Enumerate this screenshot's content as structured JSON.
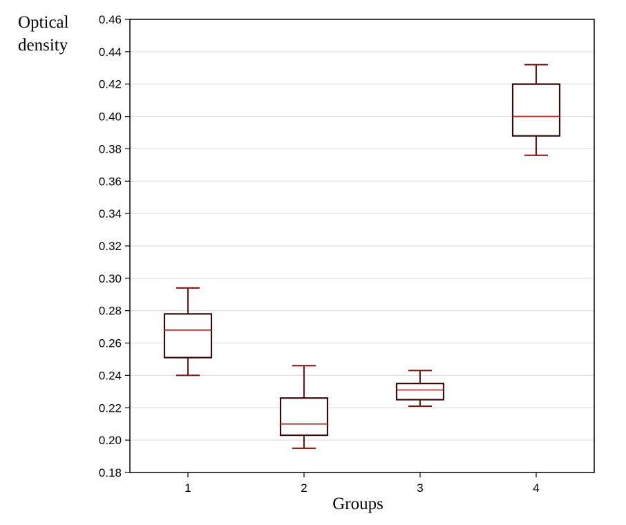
{
  "chart_data": {
    "type": "box",
    "ylabel_lines": [
      "Optical",
      "density"
    ],
    "xlabel": "Groups",
    "ylim": [
      0.18,
      0.46
    ],
    "yticks": [
      "0.18",
      "0.20",
      "0.22",
      "0.24",
      "0.26",
      "0.28",
      "0.30",
      "0.32",
      "0.34",
      "0.36",
      "0.38",
      "0.40",
      "0.42",
      "0.44",
      "0.46"
    ],
    "grid": true,
    "categories": [
      "1",
      "2",
      "3",
      "4"
    ],
    "boxes": [
      {
        "category": "1",
        "whisker_low": 0.24,
        "q1": 0.251,
        "median": 0.268,
        "q3": 0.278,
        "whisker_high": 0.294
      },
      {
        "category": "2",
        "whisker_low": 0.195,
        "q1": 0.203,
        "median": 0.21,
        "q3": 0.226,
        "whisker_high": 0.246
      },
      {
        "category": "3",
        "whisker_low": 0.221,
        "q1": 0.225,
        "median": 0.231,
        "q3": 0.235,
        "whisker_high": 0.243
      },
      {
        "category": "4",
        "whisker_low": 0.376,
        "q1": 0.388,
        "median": 0.4,
        "q3": 0.42,
        "whisker_high": 0.432
      }
    ],
    "colors": {
      "box": "#3a0a0a",
      "whisker": "#7a1010",
      "median": "#b03030",
      "grid": "#d9d9d9",
      "axis": "#000000"
    }
  }
}
